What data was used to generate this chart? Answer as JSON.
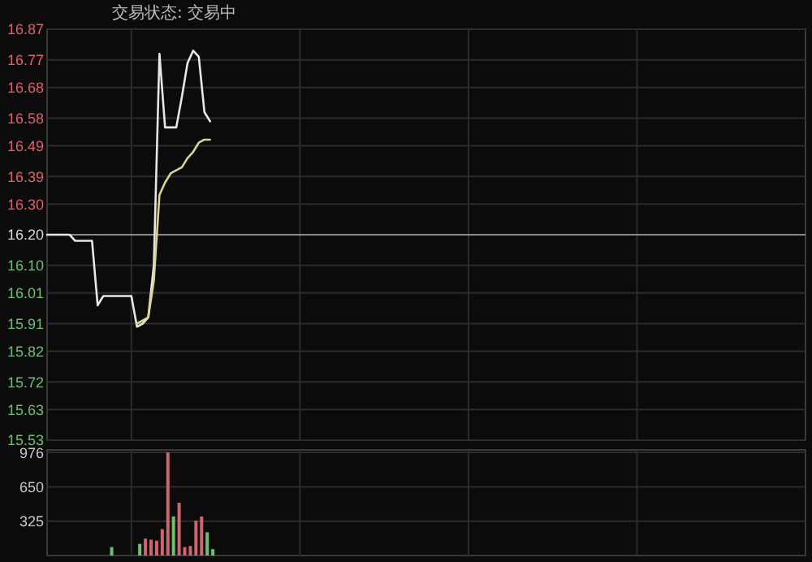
{
  "chart_data": [
    {
      "type": "line",
      "title": "交易状态: 交易中",
      "categories": [
        null,
        null,
        null,
        null,
        null,
        null,
        null,
        null,
        null,
        null,
        null,
        null,
        null,
        null,
        null,
        null,
        null,
        null,
        null,
        null,
        null,
        null,
        null,
        null,
        null,
        null,
        null,
        null,
        null,
        null,
        null,
        null,
        null,
        null,
        null,
        null,
        null,
        null,
        null,
        null,
        null,
        null,
        null,
        null,
        null,
        null,
        null,
        null,
        null,
        null,
        null,
        null,
        null,
        null,
        null,
        null,
        null,
        null,
        null,
        null,
        null,
        null,
        null,
        null,
        null,
        null,
        null,
        null,
        null,
        null,
        null,
        null,
        null,
        null,
        null,
        null,
        null,
        null,
        null,
        null,
        null,
        null,
        null,
        null,
        null,
        null,
        null,
        null,
        null,
        null,
        null,
        null,
        null,
        null,
        null,
        null,
        null,
        null,
        null,
        null,
        null,
        null,
        null,
        null,
        null,
        null,
        null,
        null,
        null,
        null,
        null,
        null,
        null,
        null,
        null,
        null,
        null,
        null,
        null,
        null,
        null,
        null,
        null,
        null,
        null,
        null,
        null,
        null,
        null,
        null,
        null,
        null,
        null,
        null,
        null
      ],
      "ylim": [
        15.53,
        16.87
      ],
      "yticks": [
        16.87,
        16.77,
        16.68,
        16.58,
        16.49,
        16.39,
        {
          "value": 16.3,
          "label": "16.30"
        },
        {
          "value": 16.2,
          "label": "16.20"
        },
        {
          "value": 16.1,
          "label": "16.10"
        },
        16.01,
        15.91,
        15.82,
        15.72,
        15.63,
        15.53
      ],
      "tick_labels": "y",
      "grid": true,
      "ref_lines": [
        {
          "axis": "y",
          "value": 16.2,
          "color": "#8a8a8a"
        }
      ],
      "series": [
        {
          "color": "#e6e6e6",
          "values": [
            16.2,
            16.2,
            16.2,
            16.2,
            16.2,
            16.18,
            16.18,
            16.18,
            16.18,
            15.97,
            16.0,
            16.0,
            16.0,
            16.0,
            16.0,
            16.0,
            15.9,
            15.91,
            15.93,
            16.1,
            16.79,
            16.55,
            16.55,
            16.55,
            16.65,
            16.76,
            16.8,
            16.78,
            16.6,
            16.57,
            null,
            null,
            null,
            null,
            null,
            null,
            null,
            null,
            null,
            null,
            null,
            null,
            null,
            null,
            null,
            null,
            null,
            null,
            null,
            null,
            null,
            null,
            null,
            null,
            null,
            null,
            null,
            null,
            null,
            null,
            null,
            null,
            null,
            null,
            null,
            null,
            null,
            null,
            null,
            null,
            null,
            null,
            null,
            null,
            null,
            null,
            null,
            null,
            null,
            null,
            null,
            null,
            null,
            null,
            null,
            null,
            null,
            null,
            null,
            null,
            null,
            null,
            null,
            null,
            null,
            null,
            null,
            null,
            null,
            null,
            null,
            null,
            null,
            null,
            null,
            null,
            null,
            null,
            null,
            null,
            null,
            null,
            null,
            null,
            null,
            null,
            null,
            null,
            null,
            null,
            null,
            null,
            null,
            null,
            null,
            null,
            null,
            null,
            null,
            null,
            null,
            null,
            null,
            null,
            null
          ]
        },
        {
          "color": "#d8d68c",
          "values": [
            null,
            null,
            null,
            null,
            null,
            null,
            null,
            null,
            null,
            null,
            null,
            null,
            null,
            null,
            null,
            null,
            15.91,
            15.92,
            15.93,
            16.05,
            16.33,
            16.37,
            16.4,
            16.41,
            16.42,
            16.45,
            16.47,
            16.5,
            16.51,
            16.51,
            null,
            null,
            null,
            null,
            null,
            null,
            null,
            null,
            null,
            null,
            null,
            null,
            null,
            null,
            null,
            null,
            null,
            null,
            null,
            null,
            null,
            null,
            null,
            null,
            null,
            null,
            null,
            null,
            null,
            null,
            null,
            null,
            null,
            null,
            null,
            null,
            null,
            null,
            null,
            null,
            null,
            null,
            null,
            null,
            null,
            null,
            null,
            null,
            null,
            null,
            null,
            null,
            null,
            null,
            null,
            null,
            null,
            null,
            null,
            null,
            null,
            null,
            null,
            null,
            null,
            null,
            null,
            null,
            null,
            null,
            null,
            null,
            null,
            null,
            null,
            null,
            null,
            null,
            null,
            null,
            null,
            null,
            null,
            null,
            null,
            null,
            null,
            null,
            null,
            null,
            null,
            null,
            null,
            null,
            null,
            null,
            null,
            null,
            null,
            null,
            null,
            null,
            null,
            null,
            null
          ]
        }
      ]
    },
    {
      "type": "bar",
      "categories": [
        null,
        null,
        null,
        null,
        null,
        null,
        null,
        null,
        null,
        null,
        null,
        null,
        null,
        null,
        null,
        null,
        null,
        null,
        null,
        null,
        null,
        null,
        null,
        null,
        null,
        null,
        null,
        null,
        null,
        null,
        null,
        null,
        null,
        null,
        null,
        null,
        null,
        null,
        null,
        null,
        null,
        null,
        null,
        null,
        null,
        null,
        null,
        null,
        null,
        null,
        null,
        null,
        null,
        null,
        null,
        null,
        null,
        null,
        null,
        null,
        null,
        null,
        null,
        null,
        null,
        null,
        null,
        null,
        null,
        null,
        null,
        null,
        null,
        null,
        null,
        null,
        null,
        null,
        null,
        null,
        null,
        null,
        null,
        null,
        null,
        null,
        null,
        null,
        null,
        null,
        null,
        null,
        null,
        null,
        null,
        null,
        null,
        null,
        null,
        null,
        null,
        null,
        null,
        null,
        null,
        null,
        null,
        null,
        null,
        null,
        null,
        null,
        null,
        null,
        null,
        null,
        null,
        null,
        null,
        null,
        null,
        null,
        null,
        null,
        null,
        null,
        null,
        null,
        null,
        null,
        null,
        null,
        null,
        null,
        null
      ],
      "ylim": [
        0,
        1000
      ],
      "yticks": [
        325,
        650,
        976
      ],
      "tick_labels": "y",
      "grid": true,
      "values": [
        null,
        null,
        null,
        null,
        null,
        null,
        null,
        null,
        null,
        null,
        null,
        80,
        null,
        null,
        null,
        null,
        110,
        160,
        150,
        140,
        250,
        976,
        370,
        500,
        80,
        90,
        330,
        370,
        220,
        60,
        null,
        null,
        null,
        null,
        null,
        null,
        null,
        null,
        null,
        null,
        null,
        null,
        null,
        null,
        null,
        null,
        null,
        null,
        null,
        null,
        null,
        null,
        null,
        null,
        null,
        null,
        null,
        null,
        null,
        null,
        null,
        null,
        null,
        null,
        null,
        null,
        null,
        null,
        null,
        null,
        null,
        null,
        null,
        null,
        null,
        null,
        null,
        null,
        null,
        null,
        null,
        null,
        null,
        null,
        null,
        null,
        null,
        null,
        null,
        null,
        null,
        null,
        null,
        null,
        null,
        null,
        null,
        null,
        null,
        null,
        null,
        null,
        null,
        null,
        null,
        null,
        null,
        null,
        null,
        null,
        null,
        null,
        null,
        null,
        null,
        null,
        null,
        null,
        null,
        null,
        null,
        null,
        null,
        null,
        null,
        null,
        null,
        null,
        null,
        null,
        null,
        null,
        null,
        null,
        null
      ],
      "colors": [
        null,
        null,
        null,
        null,
        null,
        null,
        null,
        null,
        null,
        null,
        null,
        "#6fbf73",
        null,
        null,
        null,
        null,
        "#6fbf73",
        "#d0646c",
        "#d0646c",
        "#d0646c",
        "#d0646c",
        "#d0646c",
        "#6fbf73",
        "#d0646c",
        "#d0646c",
        "#d0646c",
        "#d0646c",
        "#d0646c",
        "#6fbf73",
        "#6fbf73",
        null,
        null,
        null,
        null,
        null,
        null,
        null,
        null,
        null,
        null,
        null,
        null,
        null,
        null,
        null,
        null,
        null,
        null,
        null,
        null,
        null,
        null,
        null,
        null,
        null,
        null,
        null,
        null,
        null,
        null,
        null,
        null,
        null,
        null,
        null,
        null,
        null,
        null,
        null,
        null,
        null,
        null,
        null,
        null,
        null,
        null,
        null,
        null,
        null,
        null,
        null,
        null,
        null,
        null,
        null,
        null,
        null,
        null,
        null,
        null,
        null,
        null,
        null,
        null,
        null,
        null,
        null,
        null,
        null,
        null,
        null,
        null,
        null,
        null,
        null,
        null,
        null,
        null,
        null,
        null,
        null,
        null,
        null,
        null,
        null,
        null,
        null,
        null,
        null,
        null,
        null,
        null,
        null,
        null,
        null,
        null,
        null,
        null,
        null,
        null,
        null,
        null,
        null,
        null,
        null
      ]
    }
  ]
}
